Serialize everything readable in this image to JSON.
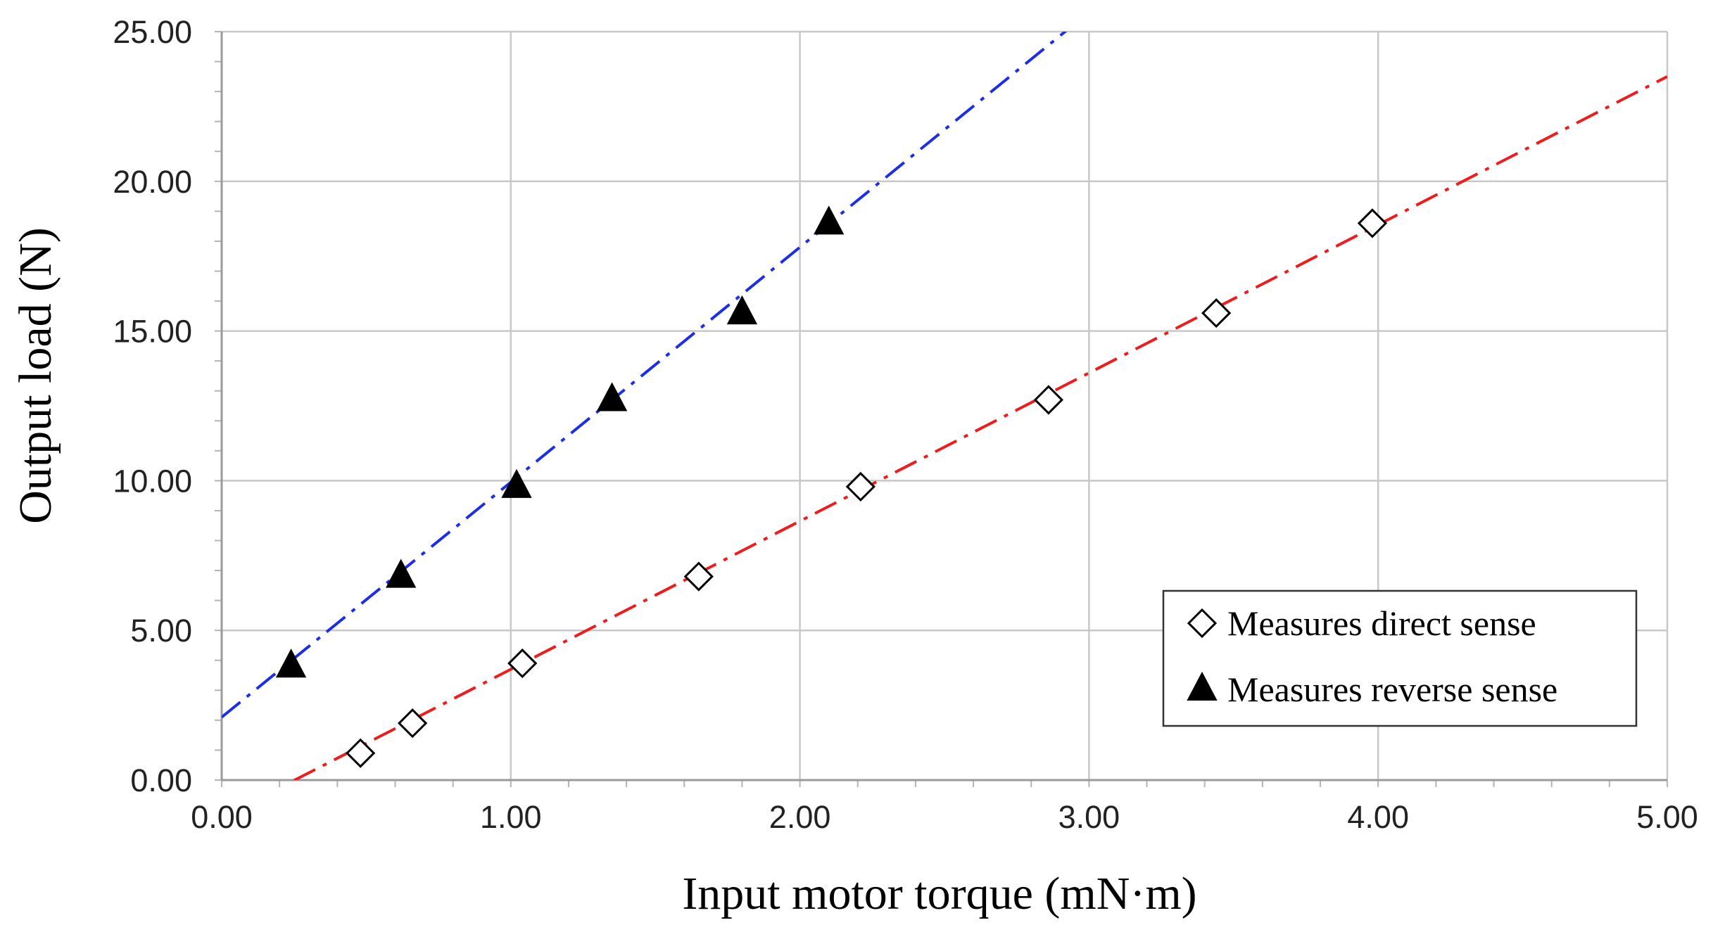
{
  "chart_data": {
    "type": "scatter",
    "xlabel": "Input motor torque (mN·m)",
    "ylabel": "Output load (N)",
    "xlim": [
      0,
      5
    ],
    "ylim": [
      0,
      25
    ],
    "x_ticks": [
      "0.00",
      "1.00",
      "2.00",
      "3.00",
      "4.00",
      "5.00"
    ],
    "y_ticks": [
      "0.00",
      "5.00",
      "10.00",
      "15.00",
      "20.00",
      "25.00"
    ],
    "x_tick_values": [
      0,
      1,
      2,
      3,
      4,
      5
    ],
    "y_tick_values": [
      0,
      5,
      10,
      15,
      20,
      25
    ],
    "grid": true,
    "legend_position": "bottom-right",
    "series": [
      {
        "name": "Measures direct sense",
        "marker": "diamond-open",
        "color": "#000000",
        "points": [
          [
            0.48,
            0.9
          ],
          [
            0.66,
            1.9
          ],
          [
            1.04,
            3.9
          ],
          [
            1.65,
            6.8
          ],
          [
            2.21,
            9.8
          ],
          [
            2.86,
            12.7
          ],
          [
            3.44,
            15.6
          ],
          [
            3.98,
            18.6
          ]
        ],
        "trendline": {
          "style": "dash-dot",
          "color": "#ee1c1c",
          "slope": 4.95,
          "intercept": -1.25,
          "x_range": [
            0.25,
            5.0
          ]
        }
      },
      {
        "name": "Measures reverse sense",
        "marker": "triangle-filled",
        "color": "#000000",
        "points": [
          [
            0.24,
            3.8
          ],
          [
            0.62,
            6.8
          ],
          [
            1.02,
            9.8
          ],
          [
            1.35,
            12.7
          ],
          [
            1.8,
            15.6
          ],
          [
            2.1,
            18.6
          ]
        ],
        "trendline": {
          "style": "dash-dot",
          "color": "#1c2ee8",
          "slope": 7.85,
          "intercept": 2.1,
          "x_range": [
            0.0,
            2.92
          ]
        }
      }
    ]
  }
}
